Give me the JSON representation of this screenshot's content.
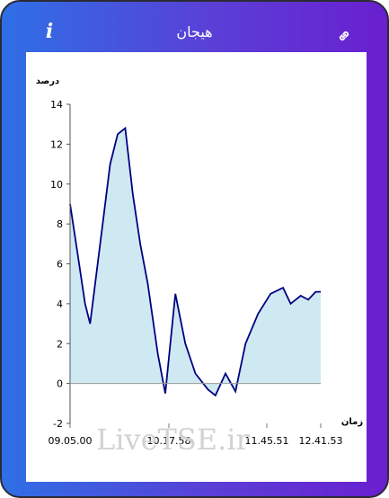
{
  "header": {
    "title": "هیجان",
    "info_icon": "info-icon",
    "link_icon": "link-icon"
  },
  "colors": {
    "gradient_start": "#2f6fe6",
    "gradient_end": "#6a1fd0",
    "line": "#000080",
    "fill": "#cfe9f3"
  },
  "watermark": "LiveTSE.ir",
  "chart_data": {
    "type": "area",
    "ylabel": "درصد",
    "xlabel": "زمان",
    "ylim": [
      -2,
      14
    ],
    "y_ticks": [
      "14",
      "12",
      "10",
      "8",
      "6",
      "4",
      "2",
      "0",
      "-2"
    ],
    "x_ticks": [
      "09.05.00",
      "10.17.58",
      "11.45.51",
      "12.41.53"
    ],
    "series": [
      {
        "x": [
          0,
          0.03,
          0.06,
          0.08,
          0.1,
          0.13,
          0.16,
          0.19,
          0.22,
          0.25,
          0.28,
          0.31,
          0.35,
          0.38,
          0.42,
          0.46,
          0.5,
          0.55,
          0.58,
          0.62,
          0.66,
          0.7,
          0.75,
          0.8,
          0.85,
          0.88,
          0.92,
          0.95,
          0.98,
          1
        ],
        "y": [
          9.0,
          6.5,
          4.0,
          3.0,
          5.0,
          8.0,
          11.0,
          12.5,
          12.8,
          9.5,
          7.0,
          5.0,
          1.5,
          -0.5,
          4.5,
          2.0,
          0.5,
          -0.3,
          -0.6,
          0.5,
          -0.4,
          2.0,
          3.5,
          4.5,
          4.8,
          4.0,
          4.4,
          4.2,
          4.6,
          4.6
        ]
      }
    ]
  }
}
